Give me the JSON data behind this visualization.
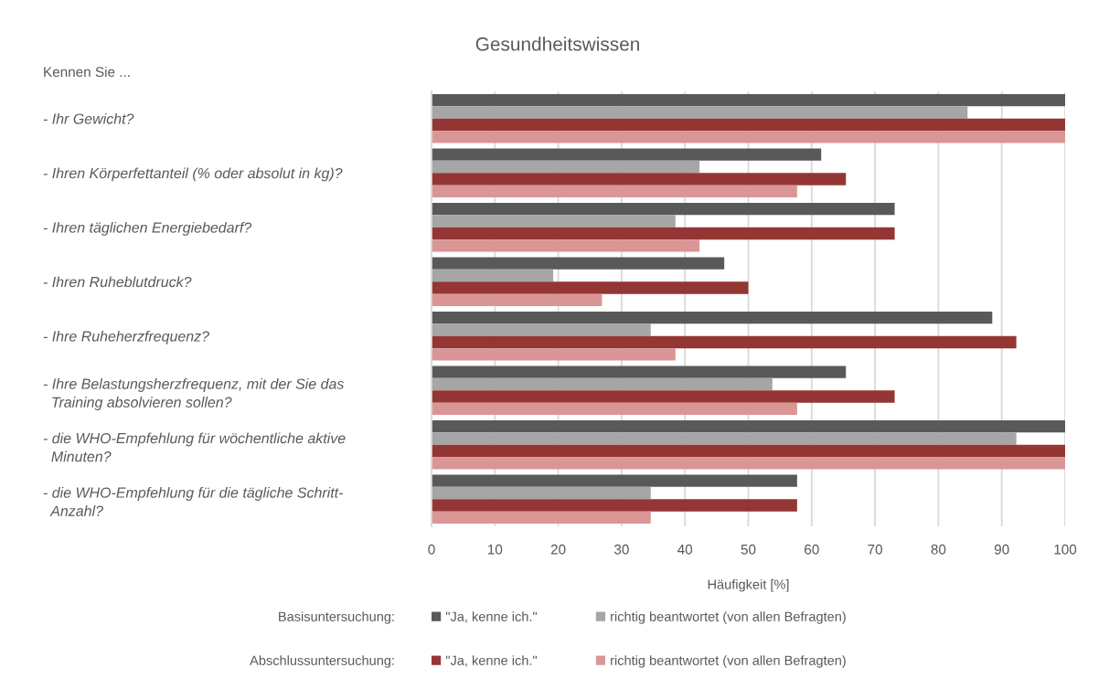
{
  "chart_data": {
    "type": "bar",
    "orientation": "horizontal",
    "title": "Gesundheitswissen",
    "ylabel": "Kennen Sie ...",
    "xlabel": "Häufigkeit [%]",
    "categories": [
      "- Ihr Gewicht?",
      "- Ihren Körperfettanteil (% oder absolut in kg)?",
      "- Ihren täglichen Energiebedarf?",
      "- Ihren Ruheblutdruck?",
      "- Ihre Ruheherzfrequenz?",
      "- Ihre Belastungsherzfrequenz, mit der Sie das\nTraining absolvieren sollen?",
      "- die WHO-Empfehlung für wöchentliche aktive\nMinuten?",
      "- die WHO-Empfehlung für die tägliche Schritt-\nAnzahl?"
    ],
    "series": [
      {
        "name": "\"Ja, kenne ich.\"",
        "color": "#595959",
        "values": [
          100,
          61.5,
          73.1,
          46.2,
          88.5,
          65.4,
          100,
          57.7
        ]
      },
      {
        "name": "richtig beantwortet (von allen Befragten)",
        "color": "#a6a6a6",
        "values": [
          84.6,
          42.3,
          38.5,
          19.2,
          34.6,
          53.8,
          92.3,
          34.6
        ]
      },
      {
        "name": "\"Ja, kenne ich.\"",
        "color": "#943634",
        "values": [
          100,
          65.4,
          73.1,
          50.0,
          92.3,
          73.1,
          100,
          57.7
        ]
      },
      {
        "name": "richtig beantwortet (von allen Befragten)",
        "color": "#d99694",
        "values": [
          100,
          57.7,
          42.3,
          26.9,
          38.5,
          57.7,
          100,
          34.6
        ]
      }
    ],
    "xlim": [
      0,
      100
    ],
    "xticks": [
      0,
      10,
      20,
      30,
      40,
      50,
      60,
      70,
      80,
      90,
      100
    ],
    "grid": "x",
    "legend": "bottom",
    "annotations": [
      "Basisuntersuchung:",
      "Abschlussuntersuchung:"
    ]
  }
}
